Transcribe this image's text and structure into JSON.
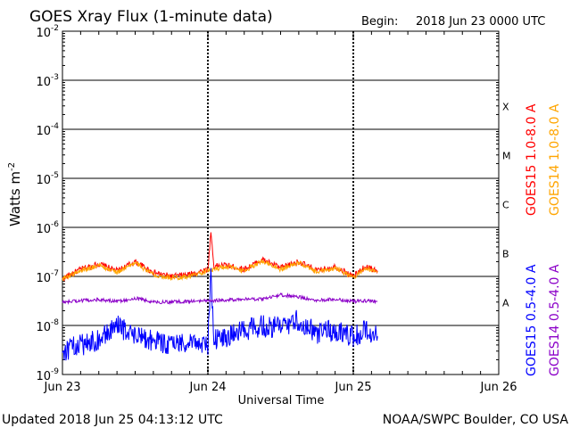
{
  "header": {
    "title": "GOES Xray Flux (1-minute data)",
    "begin_label": "Begin:",
    "begin_value": "2018 Jun 23 0000 UTC"
  },
  "footer": {
    "updated": "Updated 2018 Jun 25 04:13:12 UTC",
    "source": "NOAA/SWPC Boulder, CO USA"
  },
  "colors": {
    "goes15_long": "#ff0000",
    "goes14_long": "#ffa500",
    "goes15_short": "#0000ff",
    "goes14_short": "#8b00c8",
    "axes": "#000000"
  },
  "chart_data": {
    "type": "line",
    "yscale": "log",
    "ylim": [
      1e-09,
      0.01
    ],
    "xlim": [
      "2018-06-23 00:00",
      "2018-06-26 00:00"
    ],
    "ylabel": "Watts m",
    "ylabel_sup": "-2",
    "xlabel": "Universal Time",
    "y_ticks": [
      {
        "mant": "10",
        "exp": "-9"
      },
      {
        "mant": "10",
        "exp": "-8"
      },
      {
        "mant": "10",
        "exp": "-7"
      },
      {
        "mant": "10",
        "exp": "-6"
      },
      {
        "mant": "10",
        "exp": "-5"
      },
      {
        "mant": "10",
        "exp": "-4"
      },
      {
        "mant": "10",
        "exp": "-3"
      },
      {
        "mant": "10",
        "exp": "-2"
      }
    ],
    "x_ticks": [
      "Jun 23",
      "Jun 24",
      "Jun 25",
      "Jun 26"
    ],
    "flare_classes": [
      {
        "label": "A",
        "flux": 1e-08
      },
      {
        "label": "B",
        "flux": 1e-07
      },
      {
        "label": "C",
        "flux": 1e-06
      },
      {
        "label": "M",
        "flux": 1e-05
      },
      {
        "label": "X",
        "flux": 0.0001
      }
    ],
    "grid": true,
    "legend_placement": "right",
    "series": [
      {
        "name": "GOES15 1.0-8.0 A",
        "color": "#ff0000",
        "x": [
          "2018-06-23 00:00",
          "2018-06-23 03:00",
          "2018-06-23 06:00",
          "2018-06-23 09:00",
          "2018-06-23 12:00",
          "2018-06-23 15:00",
          "2018-06-23 18:00",
          "2018-06-23 21:00",
          "2018-06-24 00:00",
          "2018-06-24 00:30",
          "2018-06-24 01:00",
          "2018-06-24 03:00",
          "2018-06-24 06:00",
          "2018-06-24 09:00",
          "2018-06-24 12:00",
          "2018-06-24 15:00",
          "2018-06-24 18:00",
          "2018-06-24 21:00",
          "2018-06-25 00:00",
          "2018-06-25 02:00",
          "2018-06-25 04:00"
        ],
        "y": [
          9e-08,
          1.4e-07,
          1.8e-07,
          1.3e-07,
          2e-07,
          1.2e-07,
          1e-07,
          1.1e-07,
          1.4e-07,
          8e-07,
          1.6e-07,
          1.7e-07,
          1.4e-07,
          2.2e-07,
          1.5e-07,
          2e-07,
          1.3e-07,
          1.6e-07,
          1e-07,
          1.6e-07,
          1.3e-07
        ]
      },
      {
        "name": "GOES14 1.0-8.0 A",
        "color": "#ffa500",
        "x": [
          "2018-06-23 00:00",
          "2018-06-23 03:00",
          "2018-06-23 06:00",
          "2018-06-23 09:00",
          "2018-06-23 12:00",
          "2018-06-23 15:00",
          "2018-06-23 18:00",
          "2018-06-23 21:00",
          "2018-06-24 00:00",
          "2018-06-24 03:00",
          "2018-06-24 06:00",
          "2018-06-24 09:00",
          "2018-06-24 12:00",
          "2018-06-24 15:00",
          "2018-06-24 18:00",
          "2018-06-24 21:00",
          "2018-06-25 00:00",
          "2018-06-25 02:00",
          "2018-06-25 04:00"
        ],
        "y": [
          9e-08,
          1.3e-07,
          1.7e-07,
          1.2e-07,
          1.9e-07,
          1.1e-07,
          9.5e-08,
          1e-07,
          1.3e-07,
          1.6e-07,
          1.3e-07,
          2.1e-07,
          1.4e-07,
          1.9e-07,
          1.2e-07,
          1.5e-07,
          9.5e-08,
          1.5e-07,
          1.2e-07
        ]
      },
      {
        "name": "GOES15 0.5-4.0 A",
        "color": "#0000ff",
        "x": [
          "2018-06-23 00:00",
          "2018-06-23 03:00",
          "2018-06-23 06:00",
          "2018-06-23 09:00",
          "2018-06-23 12:00",
          "2018-06-23 15:00",
          "2018-06-23 18:00",
          "2018-06-23 21:00",
          "2018-06-24 00:00",
          "2018-06-24 00:30",
          "2018-06-24 01:00",
          "2018-06-24 03:00",
          "2018-06-24 06:00",
          "2018-06-24 09:00",
          "2018-06-24 12:00",
          "2018-06-24 15:00",
          "2018-06-24 18:00",
          "2018-06-24 21:00",
          "2018-06-25 00:00",
          "2018-06-25 02:00",
          "2018-06-25 04:00"
        ],
        "y": [
          3e-09,
          4e-09,
          5e-09,
          1e-08,
          6e-09,
          5e-09,
          4e-09,
          5e-09,
          4e-09,
          1e-07,
          5e-09,
          6e-09,
          8e-09,
          1e-08,
          9e-09,
          1.3e-08,
          7e-09,
          8e-09,
          6e-09,
          8e-09,
          6e-09
        ]
      },
      {
        "name": "GOES14 0.5-4.0 A",
        "color": "#8b00c8",
        "x": [
          "2018-06-23 00:00",
          "2018-06-23 03:00",
          "2018-06-23 06:00",
          "2018-06-23 09:00",
          "2018-06-23 12:00",
          "2018-06-23 15:00",
          "2018-06-23 18:00",
          "2018-06-23 21:00",
          "2018-06-24 00:00",
          "2018-06-24 03:00",
          "2018-06-24 06:00",
          "2018-06-24 09:00",
          "2018-06-24 12:00",
          "2018-06-24 15:00",
          "2018-06-24 18:00",
          "2018-06-24 21:00",
          "2018-06-25 00:00",
          "2018-06-25 02:00",
          "2018-06-25 04:00"
        ],
        "y": [
          3e-08,
          3.2e-08,
          3.4e-08,
          3.1e-08,
          3.6e-08,
          3e-08,
          3e-08,
          3.1e-08,
          3.2e-08,
          3.3e-08,
          3.5e-08,
          3.4e-08,
          4.2e-08,
          3.8e-08,
          3.3e-08,
          3.4e-08,
          3.1e-08,
          3.2e-08,
          3.1e-08
        ]
      }
    ]
  }
}
